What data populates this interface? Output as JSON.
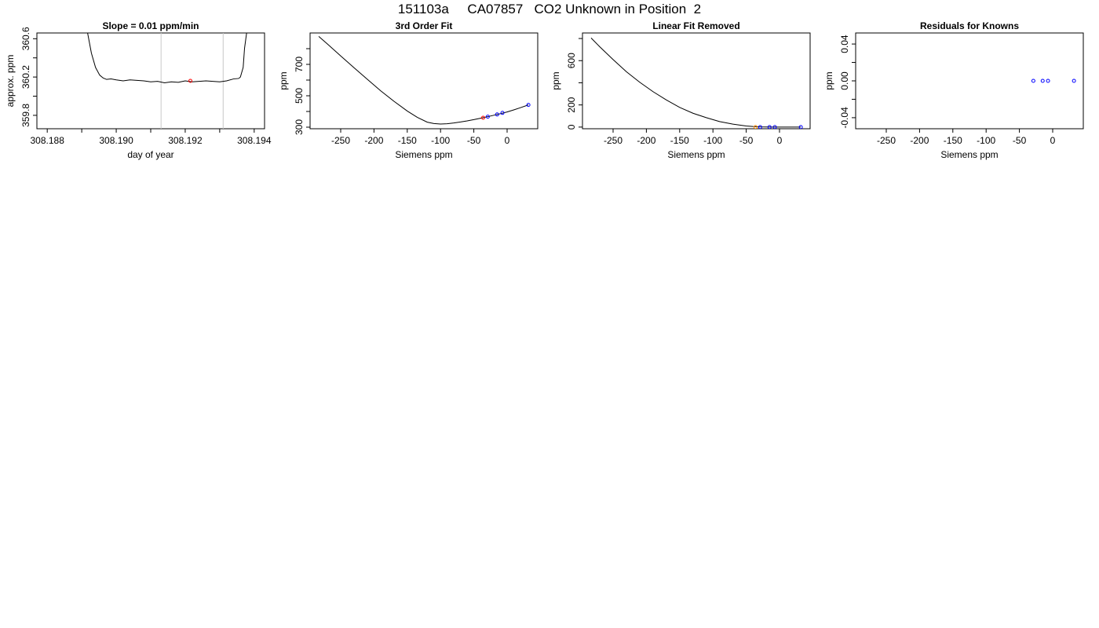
{
  "page": {
    "title": "151103a     CA07857   CO2 Unknown in Position  2"
  },
  "chart_data": [
    {
      "type": "line",
      "title": "Slope =  0.01  ppm/min",
      "xlabel": "day of year",
      "ylabel": "approx. ppm",
      "xlim": [
        308.1877,
        308.1943
      ],
      "ylim": [
        359.66,
        360.66
      ],
      "xticks": [
        308.188,
        308.189,
        308.19,
        308.191,
        308.192,
        308.193,
        308.194
      ],
      "xtick_labels": [
        "308.188",
        "",
        "308.190",
        "",
        "308.192",
        "",
        "308.194"
      ],
      "yticks": [
        359.8,
        360.0,
        360.2,
        360.4,
        360.6
      ],
      "ytick_labels": [
        "359.8",
        "",
        "360.2",
        "",
        "360.6"
      ],
      "vlines": [
        308.1913,
        308.1931
      ],
      "series": [
        {
          "style": "line",
          "color": "#000000",
          "x": [
            308.18917,
            308.18928,
            308.1894,
            308.18952,
            308.18962,
            308.18972,
            308.18985,
            308.19,
            308.1902,
            308.1904,
            308.1906,
            308.1908,
            308.191,
            308.1912,
            308.1914,
            308.1916,
            308.1918,
            308.192,
            308.1922,
            308.1924,
            308.1926,
            308.1928,
            308.193,
            308.1932,
            308.1934,
            308.19355,
            308.1936,
            308.19368,
            308.19372,
            308.19378
          ],
          "y": [
            360.66,
            360.45,
            360.3,
            360.22,
            360.19,
            360.175,
            360.18,
            360.17,
            360.16,
            360.17,
            360.165,
            360.16,
            360.15,
            360.155,
            360.14,
            360.15,
            360.145,
            360.16,
            360.15,
            360.155,
            360.16,
            360.155,
            360.15,
            360.16,
            360.18,
            360.185,
            360.2,
            360.3,
            360.5,
            360.66
          ]
        },
        {
          "style": "point",
          "color": "#ff0000",
          "x": [
            308.19215
          ],
          "y": [
            360.16
          ]
        }
      ]
    },
    {
      "type": "line",
      "title": "3rd Order Fit",
      "xlabel": "Siemens ppm",
      "ylabel": "ppm",
      "xlim": [
        -296,
        46
      ],
      "ylim": [
        290,
        900
      ],
      "xticks": [
        -250,
        -200,
        -150,
        -100,
        -50,
        0
      ],
      "xtick_labels": [
        "-250",
        "-200",
        "-150",
        "-100",
        "-50",
        "0"
      ],
      "yticks": [
        300,
        400,
        500,
        600,
        700,
        800
      ],
      "ytick_labels": [
        "300",
        "",
        "500",
        "",
        "700",
        ""
      ],
      "series": [
        {
          "style": "line",
          "color": "#000000",
          "x": [
            -283,
            -270,
            -250,
            -230,
            -210,
            -190,
            -170,
            -150,
            -135,
            -120,
            -110,
            -100,
            -90,
            -80,
            -70,
            -60,
            -50,
            -40,
            -30,
            -20,
            -10,
            0,
            10,
            20,
            32
          ],
          "y": [
            878,
            830,
            754,
            679,
            605,
            532,
            465,
            403,
            363,
            332,
            323,
            320,
            322,
            327,
            333,
            340,
            348,
            357,
            366,
            376,
            386,
            397,
            410,
            424,
            442
          ]
        },
        {
          "style": "point",
          "color": "#ff0000",
          "x": [
            -36
          ],
          "y": [
            360
          ]
        },
        {
          "style": "point",
          "color": "#0000ff",
          "x": [
            -29,
            -15,
            -7,
            32
          ],
          "y": [
            367,
            381,
            391,
            442
          ]
        }
      ]
    },
    {
      "type": "line",
      "title": "Linear Fit Removed",
      "xlabel": "Siemens ppm",
      "ylabel": "ppm",
      "xlim": [
        -296,
        46
      ],
      "ylim": [
        -15,
        850
      ],
      "xticks": [
        -250,
        -200,
        -150,
        -100,
        -50,
        0
      ],
      "xtick_labels": [
        "-250",
        "-200",
        "-150",
        "-100",
        "-50",
        "0"
      ],
      "yticks": [
        0,
        200,
        400,
        600,
        800
      ],
      "ytick_labels": [
        "0",
        "200",
        "",
        "600",
        ""
      ],
      "series": [
        {
          "style": "line",
          "color": "#000000",
          "x": [
            -283,
            -270,
            -250,
            -230,
            -210,
            -190,
            -170,
            -150,
            -130,
            -110,
            -90,
            -70,
            -50,
            -40,
            -30,
            -20,
            -10,
            0,
            10,
            20,
            32
          ],
          "y": [
            805,
            725,
            610,
            500,
            405,
            320,
            245,
            178,
            125,
            85,
            50,
            27,
            10,
            5,
            2,
            1,
            0,
            0,
            0,
            0,
            0
          ]
        },
        {
          "style": "point",
          "color": "#ff8c00",
          "x": [
            -36
          ],
          "y": [
            0
          ]
        },
        {
          "style": "point",
          "color": "#0000ff",
          "x": [
            -29,
            -15,
            -7,
            32
          ],
          "y": [
            0,
            0,
            0,
            0
          ]
        }
      ]
    },
    {
      "type": "scatter",
      "title": "Residuals for Knowns",
      "xlabel": "Siemens ppm",
      "ylabel": "ppm",
      "xlim": [
        -296,
        46
      ],
      "ylim": [
        -0.052,
        0.052
      ],
      "xticks": [
        -250,
        -200,
        -150,
        -100,
        -50,
        0
      ],
      "xtick_labels": [
        "-250",
        "-200",
        "-150",
        "-100",
        "-50",
        "0"
      ],
      "yticks": [
        -0.04,
        -0.02,
        0.0,
        0.02,
        0.04
      ],
      "ytick_labels": [
        "-0.04",
        "",
        "0.00",
        "",
        "0.04"
      ],
      "series": [
        {
          "style": "point",
          "color": "#0000ff",
          "x": [
            -29,
            -15,
            -7,
            32
          ],
          "y": [
            0.0,
            0.0,
            0.0,
            0.0
          ]
        }
      ]
    }
  ]
}
